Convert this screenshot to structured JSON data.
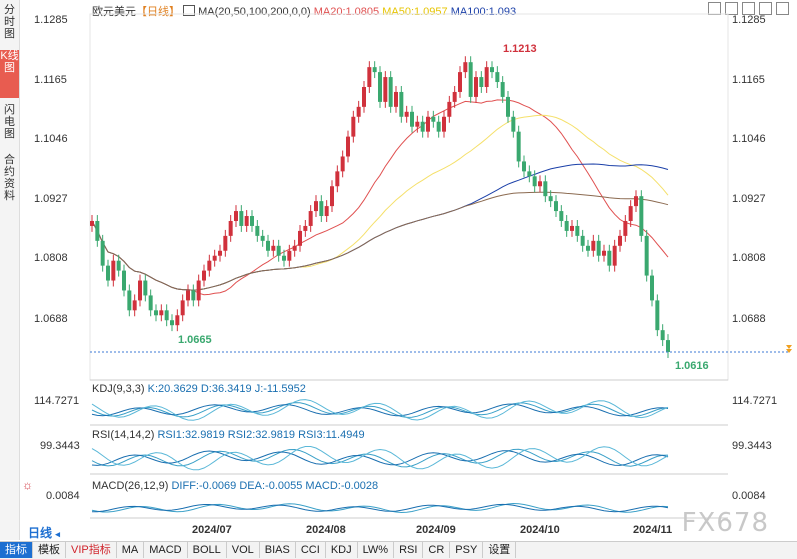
{
  "left_tabs": [
    {
      "label": "分时图",
      "active": false
    },
    {
      "label": "K线图",
      "active": true
    },
    {
      "label": "闪电图",
      "active": false
    },
    {
      "label": "合约资料",
      "active": false
    }
  ],
  "legend": {
    "title": "欧元美元",
    "period": "【日线】",
    "ma_params": "MA(20,50,100,200,0,0)",
    "ma20": "MA20:1.0805",
    "ma50": "MA50:1.0957",
    "ma100": "MA100:1.093"
  },
  "colors": {
    "up": "#d0313c",
    "down": "#3aa86f",
    "ma20": "#e05050",
    "ma50": "#f5e06a",
    "ma100": "#1a3fa8",
    "ma200": "#8b6a50",
    "accent": "#1d6fd1"
  },
  "price_axis": {
    "left": [
      "1.1285",
      "1.1165",
      "1.1046",
      "1.0927",
      "1.0808",
      "1.0688"
    ],
    "right": [
      "1.1285",
      "1.1165",
      "1.1046",
      "1.0927",
      "1.0808",
      "1.0688"
    ]
  },
  "annotations": {
    "high": "1.1213",
    "low_left": "1.0665",
    "low_right": "1.0616"
  },
  "kdj": {
    "label": "KDJ(9,3,3)",
    "k": "K:20.3629",
    "d": "D:36.3419",
    "j": "J:-11.5952",
    "axis": "114.7271"
  },
  "rsi": {
    "label": "RSI(14,14,2)",
    "rsi1": "RSI1:32.9819",
    "rsi2": "RSI2:32.9819",
    "rsi3": "RSI3:11.4949",
    "axis": "99.3443"
  },
  "macd": {
    "label": "MACD(26,12,9)",
    "diff": "DIFF:-0.0069",
    "dea": "DEA:-0.0055",
    "macd": "MACD:-0.0028",
    "axis": "0.0084"
  },
  "x_axis": [
    "2024/07",
    "2024/08",
    "2024/09",
    "2024/10",
    "2024/11"
  ],
  "period_button": "日线",
  "bottom_buttons": [
    "指标",
    "模板",
    "VIP指标",
    "MA",
    "MACD",
    "BOLL",
    "VOL",
    "BIAS",
    "CCI",
    "KDJ",
    "LW%",
    "RSI",
    "CR",
    "PSY",
    "设置"
  ],
  "watermark": "FX678",
  "chart_data": {
    "type": "candlestick",
    "x_ticks": [
      "2024/07",
      "2024/08",
      "2024/09",
      "2024/10",
      "2024/11"
    ],
    "ylim": [
      1.0616,
      1.1285
    ],
    "y_ticks": [
      1.1285,
      1.1165,
      1.1046,
      1.0927,
      1.0808,
      1.0688
    ],
    "high": 1.1213,
    "low": 1.0616,
    "closes": [
      1.088,
      1.084,
      1.079,
      1.076,
      1.08,
      1.078,
      1.074,
      1.07,
      1.072,
      1.076,
      1.073,
      1.07,
      1.069,
      1.07,
      1.068,
      1.067,
      1.069,
      1.072,
      1.074,
      1.072,
      1.076,
      1.078,
      1.08,
      1.081,
      1.082,
      1.085,
      1.088,
      1.09,
      1.087,
      1.089,
      1.087,
      1.085,
      1.084,
      1.082,
      1.083,
      1.081,
      1.08,
      1.082,
      1.083,
      1.086,
      1.087,
      1.09,
      1.092,
      1.089,
      1.091,
      1.095,
      1.098,
      1.101,
      1.105,
      1.109,
      1.111,
      1.115,
      1.119,
      1.118,
      1.112,
      1.117,
      1.111,
      1.114,
      1.109,
      1.11,
      1.107,
      1.108,
      1.106,
      1.109,
      1.108,
      1.106,
      1.109,
      1.112,
      1.114,
      1.118,
      1.12,
      1.113,
      1.117,
      1.115,
      1.119,
      1.118,
      1.116,
      1.113,
      1.109,
      1.106,
      1.1,
      1.098,
      1.097,
      1.095,
      1.096,
      1.093,
      1.092,
      1.09,
      1.088,
      1.086,
      1.087,
      1.085,
      1.083,
      1.082,
      1.084,
      1.081,
      1.082,
      1.079,
      1.083,
      1.085,
      1.088,
      1.091,
      1.093,
      1.085,
      1.077,
      1.072,
      1.066,
      1.064,
      1.0616
    ],
    "ma_lines": [
      "MA20",
      "MA50",
      "MA100",
      "MA200"
    ],
    "indicators": {
      "KDJ": [
        20.3629,
        36.3419,
        -11.5952
      ],
      "RSI": [
        32.9819,
        32.9819,
        11.4949
      ],
      "MACD": [
        -0.0069,
        -0.0055,
        -0.0028
      ]
    }
  }
}
